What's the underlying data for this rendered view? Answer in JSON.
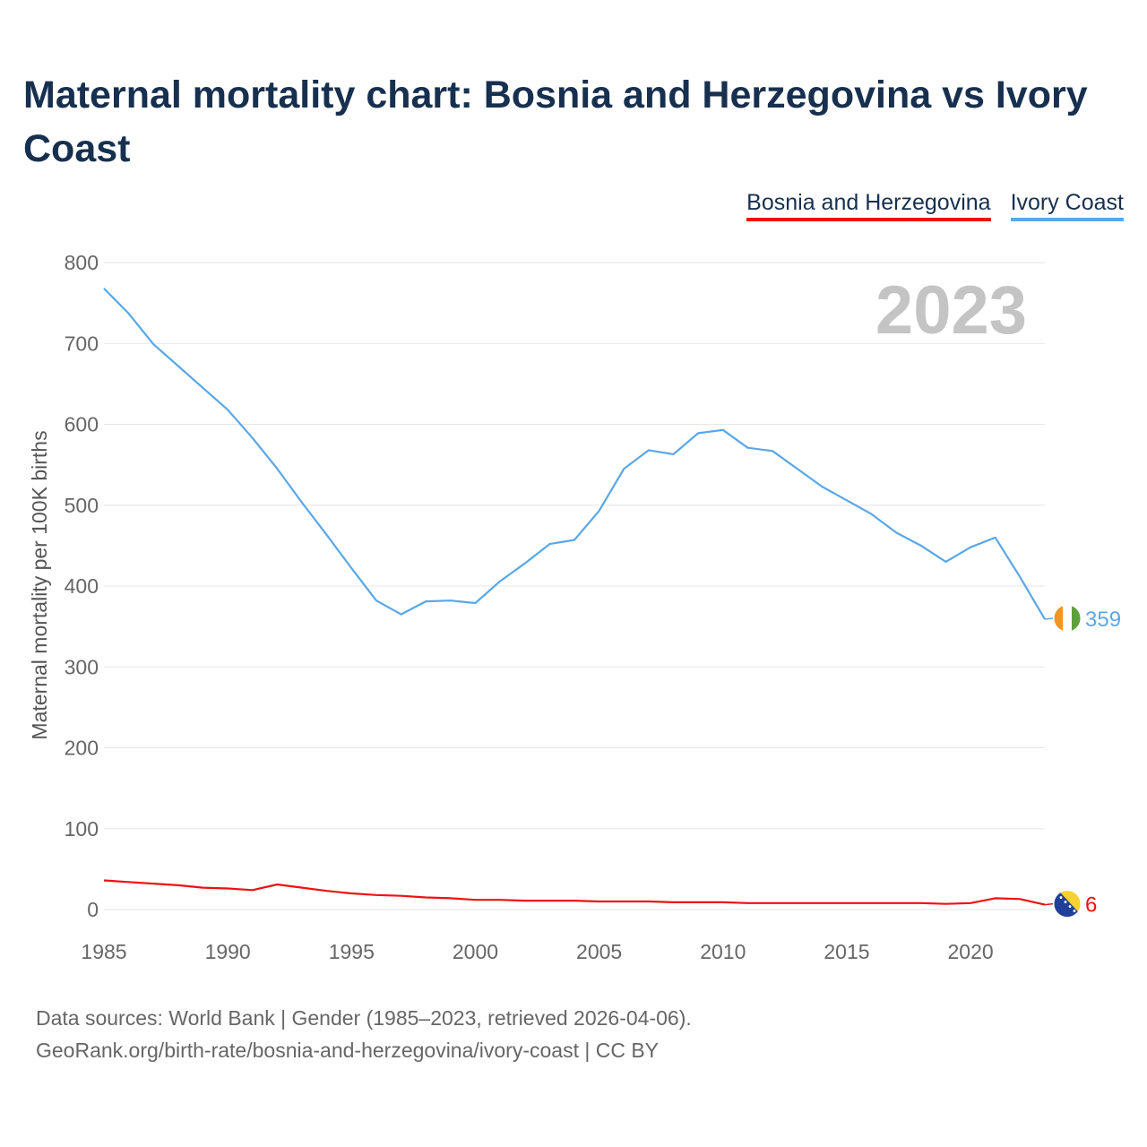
{
  "title": "Maternal mortality chart: Bosnia and Herzegovina vs Ivory Coast",
  "source_line1": "Data sources: World Bank | Gender (1985–2023, retrieved 2026-04-06).",
  "source_line2": "GeoRank.org/birth-rate/bosnia-and-herzegovina/ivory-coast | CC BY",
  "chart_data": {
    "type": "line",
    "title": "Maternal mortality chart: Bosnia and Herzegovina vs Ivory Coast",
    "xlabel": "",
    "ylabel": "Maternal mortality per 100K births",
    "year_label": "2023",
    "xlim": [
      1985,
      2023
    ],
    "ylim": [
      0,
      800
    ],
    "x_ticks": [
      1985,
      1990,
      1995,
      2000,
      2005,
      2010,
      2015,
      2020
    ],
    "y_ticks": [
      0,
      100,
      200,
      300,
      400,
      500,
      600,
      700,
      800
    ],
    "legend_position": "top-right",
    "x": [
      1985,
      1986,
      1987,
      1988,
      1989,
      1990,
      1991,
      1992,
      1993,
      1994,
      1995,
      1996,
      1997,
      1998,
      1999,
      2000,
      2001,
      2002,
      2003,
      2004,
      2005,
      2006,
      2007,
      2008,
      2009,
      2010,
      2011,
      2012,
      2013,
      2014,
      2015,
      2016,
      2017,
      2018,
      2019,
      2020,
      2021,
      2022,
      2023
    ],
    "series": [
      {
        "name": "Bosnia and Herzegovina",
        "color": "#ee1111",
        "end_label": "6",
        "flag": "bosnia-flag-icon",
        "values": [
          36,
          34,
          32,
          30,
          27,
          26,
          24,
          31,
          27,
          23,
          20,
          18,
          17,
          15,
          14,
          12,
          12,
          11,
          11,
          11,
          10,
          10,
          10,
          9,
          9,
          9,
          8,
          8,
          8,
          8,
          8,
          8,
          8,
          8,
          7,
          8,
          14,
          13,
          6
        ]
      },
      {
        "name": "Ivory Coast",
        "color": "#5aa7e6",
        "end_label": "359",
        "flag": "ivory-coast-flag-icon",
        "values": [
          768,
          737,
          699,
          672,
          645,
          618,
          583,
          545,
          503,
          463,
          422,
          382,
          365,
          381,
          382,
          379,
          406,
          428,
          452,
          457,
          493,
          545,
          568,
          563,
          589,
          593,
          571,
          567,
          545,
          523,
          506,
          489,
          466,
          450,
          430,
          448,
          460,
          411,
          359
        ]
      }
    ]
  }
}
